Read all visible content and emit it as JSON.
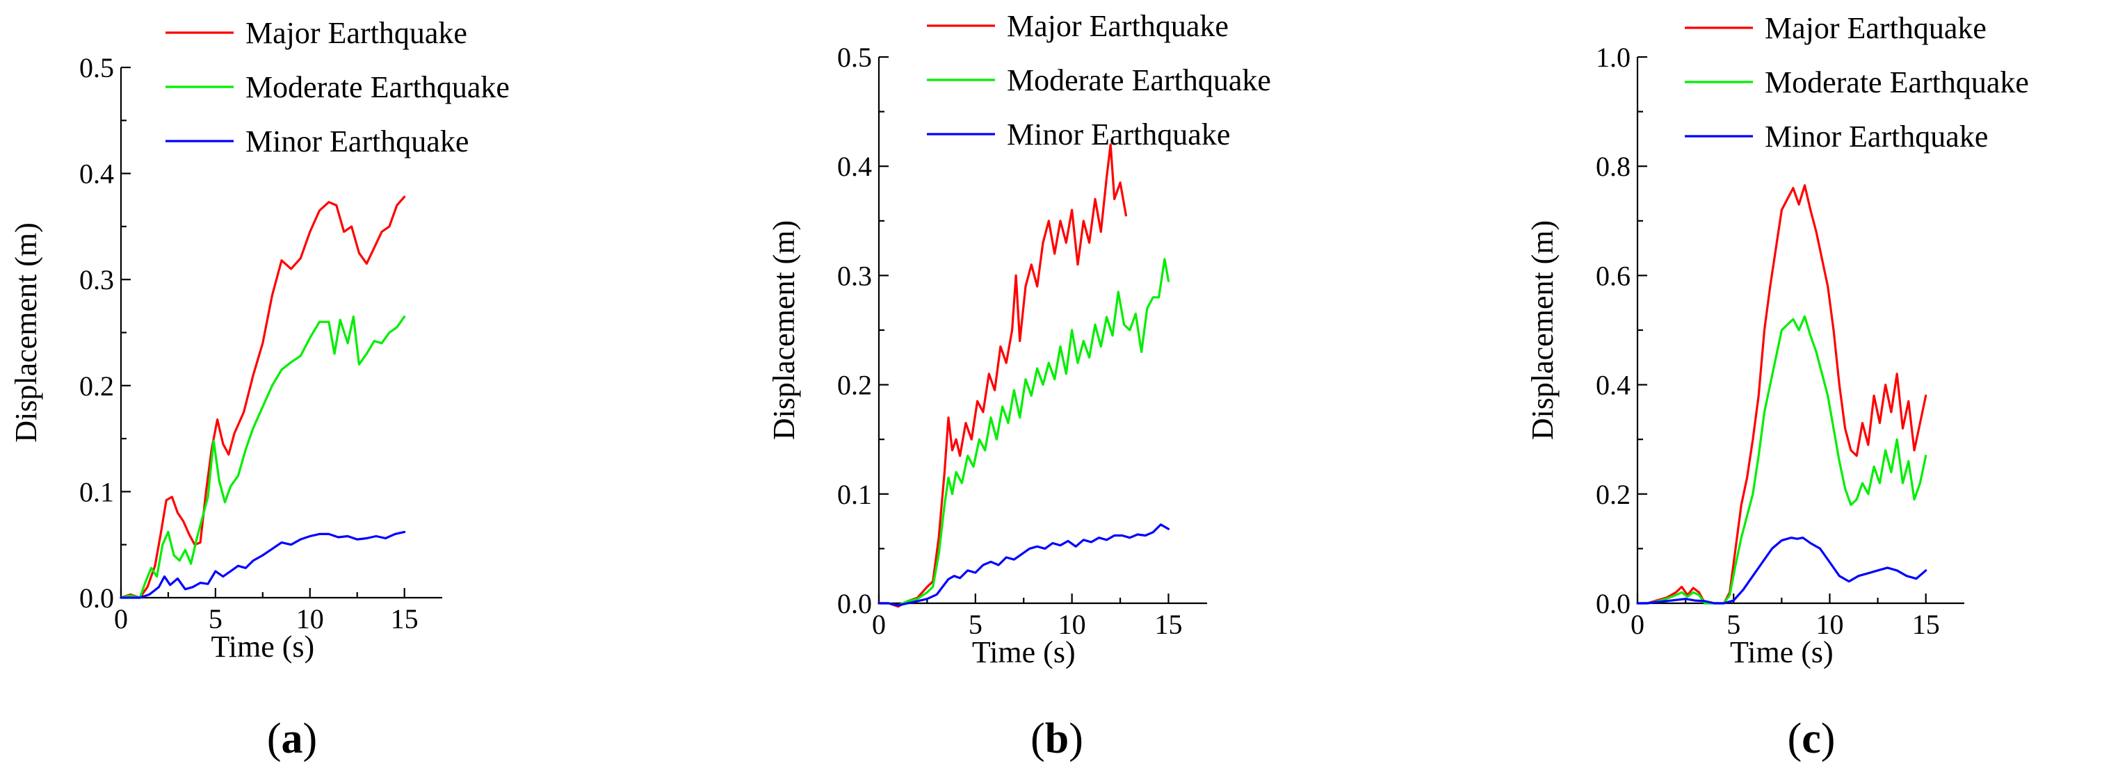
{
  "chart_data": [
    {
      "type": "line",
      "panel": "a",
      "xlabel": "Time (s)",
      "ylabel": "Displacement (m)",
      "xlim": [
        0,
        17
      ],
      "ylim": [
        0,
        0.5
      ],
      "xticks": [
        0,
        5,
        10,
        15
      ],
      "yticks": [
        0.0,
        0.1,
        0.2,
        0.3,
        0.4,
        0.5
      ],
      "ytick_labels": [
        "0.0",
        "0.1",
        "0.2",
        "0.3",
        "0.4",
        "0.5"
      ],
      "legend": "top-right",
      "series": [
        {
          "name": "Major Earthquake",
          "color": "#ff0000",
          "x": [
            0,
            0.5,
            1,
            1.4,
            1.8,
            2.1,
            2.4,
            2.7,
            3.0,
            3.3,
            3.6,
            3.9,
            4.2,
            4.5,
            4.8,
            5.1,
            5.4,
            5.7,
            6.0,
            6.5,
            7.0,
            7.5,
            8.0,
            8.5,
            9.0,
            9.5,
            10.0,
            10.5,
            11.0,
            11.4,
            11.8,
            12.2,
            12.6,
            13.0,
            13.4,
            13.8,
            14.2,
            14.6,
            15.0
          ],
          "y": [
            0,
            0.003,
            0.0,
            0.01,
            0.03,
            0.06,
            0.092,
            0.095,
            0.08,
            0.072,
            0.06,
            0.05,
            0.052,
            0.1,
            0.14,
            0.168,
            0.145,
            0.135,
            0.155,
            0.175,
            0.21,
            0.24,
            0.285,
            0.318,
            0.31,
            0.32,
            0.345,
            0.365,
            0.373,
            0.37,
            0.345,
            0.35,
            0.325,
            0.315,
            0.33,
            0.345,
            0.35,
            0.37,
            0.378
          ]
        },
        {
          "name": "Moderate Earthquake",
          "color": "#00ee00",
          "x": [
            0,
            0.5,
            1,
            1.3,
            1.6,
            1.9,
            2.2,
            2.5,
            2.8,
            3.1,
            3.4,
            3.7,
            4.0,
            4.3,
            4.6,
            4.9,
            5.2,
            5.5,
            5.8,
            6.2,
            6.6,
            7.0,
            7.5,
            8.0,
            8.5,
            9.0,
            9.5,
            10.0,
            10.5,
            11.0,
            11.3,
            11.6,
            12.0,
            12.3,
            12.6,
            13.0,
            13.4,
            13.8,
            14.2,
            14.6,
            15.0
          ],
          "y": [
            0,
            0.002,
            0.0,
            0.015,
            0.028,
            0.02,
            0.05,
            0.062,
            0.04,
            0.035,
            0.045,
            0.032,
            0.055,
            0.075,
            0.095,
            0.148,
            0.11,
            0.09,
            0.105,
            0.115,
            0.14,
            0.16,
            0.18,
            0.2,
            0.215,
            0.222,
            0.228,
            0.245,
            0.26,
            0.26,
            0.23,
            0.262,
            0.24,
            0.265,
            0.22,
            0.23,
            0.242,
            0.24,
            0.25,
            0.255,
            0.265
          ]
        },
        {
          "name": "Minor Earthquake",
          "color": "#0000ff",
          "x": [
            0,
            0.5,
            1,
            1.5,
            2.0,
            2.3,
            2.6,
            3.0,
            3.4,
            3.8,
            4.2,
            4.6,
            5.0,
            5.4,
            5.8,
            6.2,
            6.6,
            7.0,
            7.5,
            8.0,
            8.5,
            9.0,
            9.5,
            10.0,
            10.5,
            11.0,
            11.5,
            12.0,
            12.5,
            13.0,
            13.5,
            14.0,
            14.5,
            15.0
          ],
          "y": [
            0,
            0.0,
            0.0,
            0.003,
            0.01,
            0.02,
            0.012,
            0.018,
            0.008,
            0.01,
            0.014,
            0.013,
            0.025,
            0.02,
            0.025,
            0.03,
            0.028,
            0.035,
            0.04,
            0.046,
            0.052,
            0.05,
            0.055,
            0.058,
            0.06,
            0.06,
            0.057,
            0.058,
            0.055,
            0.056,
            0.058,
            0.056,
            0.06,
            0.062
          ]
        }
      ]
    },
    {
      "type": "line",
      "panel": "b",
      "xlabel": "Time (s)",
      "ylabel": "Displacement (m)",
      "xlim": [
        0,
        17
      ],
      "ylim": [
        0,
        0.5
      ],
      "xticks": [
        0,
        5,
        10,
        15
      ],
      "yticks": [
        0.0,
        0.1,
        0.2,
        0.3,
        0.4,
        0.5
      ],
      "ytick_labels": [
        "0.0",
        "0.1",
        "0.2",
        "0.3",
        "0.4",
        "0.5"
      ],
      "legend": "top-right",
      "series": [
        {
          "name": "Major Earthquake",
          "color": "#ff0000",
          "x": [
            0,
            0.5,
            1,
            1.5,
            2.0,
            2.5,
            2.8,
            3.1,
            3.4,
            3.6,
            3.8,
            4.0,
            4.2,
            4.5,
            4.8,
            5.1,
            5.4,
            5.7,
            6.0,
            6.3,
            6.6,
            6.9,
            7.1,
            7.3,
            7.6,
            7.9,
            8.2,
            8.5,
            8.8,
            9.1,
            9.4,
            9.7,
            10.0,
            10.3,
            10.6,
            10.9,
            11.2,
            11.5,
            11.8,
            12.0,
            12.2,
            12.5,
            12.8
          ],
          "y": [
            0,
            0.0,
            -0.003,
            0.002,
            0.005,
            0.015,
            0.02,
            0.06,
            0.12,
            0.17,
            0.14,
            0.15,
            0.135,
            0.165,
            0.15,
            0.185,
            0.175,
            0.21,
            0.195,
            0.235,
            0.22,
            0.25,
            0.3,
            0.24,
            0.29,
            0.31,
            0.29,
            0.33,
            0.35,
            0.32,
            0.35,
            0.33,
            0.36,
            0.31,
            0.35,
            0.33,
            0.37,
            0.34,
            0.39,
            0.42,
            0.37,
            0.385,
            0.355
          ]
        },
        {
          "name": "Moderate Earthquake",
          "color": "#00ee00",
          "x": [
            0,
            0.5,
            1,
            1.5,
            2.0,
            2.5,
            2.8,
            3.1,
            3.4,
            3.6,
            3.8,
            4.0,
            4.3,
            4.6,
            4.9,
            5.2,
            5.5,
            5.8,
            6.1,
            6.4,
            6.7,
            7.0,
            7.3,
            7.6,
            7.9,
            8.2,
            8.5,
            8.8,
            9.1,
            9.4,
            9.7,
            10.0,
            10.3,
            10.6,
            10.9,
            11.2,
            11.5,
            11.8,
            12.1,
            12.4,
            12.7,
            13.0,
            13.3,
            13.6,
            13.9,
            14.2,
            14.5,
            14.8,
            15.0
          ],
          "y": [
            0,
            0.0,
            -0.002,
            0.002,
            0.004,
            0.01,
            0.015,
            0.045,
            0.09,
            0.115,
            0.1,
            0.12,
            0.11,
            0.135,
            0.125,
            0.15,
            0.14,
            0.17,
            0.15,
            0.18,
            0.165,
            0.195,
            0.17,
            0.205,
            0.19,
            0.215,
            0.2,
            0.22,
            0.205,
            0.235,
            0.21,
            0.25,
            0.22,
            0.24,
            0.225,
            0.255,
            0.235,
            0.262,
            0.245,
            0.285,
            0.255,
            0.25,
            0.265,
            0.23,
            0.27,
            0.28,
            0.28,
            0.315,
            0.295
          ]
        },
        {
          "name": "Minor Earthquake",
          "color": "#0000ff",
          "x": [
            0,
            0.5,
            1,
            1.5,
            2.0,
            2.5,
            3.0,
            3.3,
            3.6,
            3.9,
            4.2,
            4.6,
            5.0,
            5.4,
            5.8,
            6.2,
            6.6,
            7.0,
            7.4,
            7.8,
            8.2,
            8.6,
            9.0,
            9.4,
            9.8,
            10.2,
            10.6,
            11.0,
            11.4,
            11.8,
            12.2,
            12.6,
            13.0,
            13.4,
            13.8,
            14.2,
            14.6,
            15.0
          ],
          "y": [
            0,
            0.0,
            -0.002,
            0.0,
            0.002,
            0.004,
            0.008,
            0.015,
            0.022,
            0.025,
            0.023,
            0.03,
            0.028,
            0.035,
            0.038,
            0.035,
            0.042,
            0.04,
            0.045,
            0.05,
            0.052,
            0.05,
            0.055,
            0.053,
            0.057,
            0.052,
            0.058,
            0.056,
            0.06,
            0.058,
            0.062,
            0.062,
            0.06,
            0.063,
            0.062,
            0.065,
            0.072,
            0.068
          ]
        }
      ]
    },
    {
      "type": "line",
      "panel": "c",
      "xlabel": "Time (s)",
      "ylabel": "Displacement (m)",
      "xlim": [
        0,
        17
      ],
      "ylim": [
        0,
        1.0
      ],
      "xticks": [
        0,
        5,
        10,
        15
      ],
      "yticks": [
        0.0,
        0.2,
        0.4,
        0.6,
        0.8,
        1.0
      ],
      "ytick_labels": [
        "0.0",
        "0.2",
        "0.4",
        "0.6",
        "0.8",
        "1.0"
      ],
      "legend": "top-right",
      "series": [
        {
          "name": "Major Earthquake",
          "color": "#ff0000",
          "x": [
            0,
            0.5,
            1.0,
            1.5,
            2.0,
            2.3,
            2.6,
            2.9,
            3.2,
            3.5,
            4.0,
            4.5,
            4.8,
            5.1,
            5.4,
            5.7,
            6.0,
            6.3,
            6.6,
            6.9,
            7.2,
            7.5,
            7.8,
            8.1,
            8.4,
            8.7,
            9.0,
            9.3,
            9.6,
            9.9,
            10.2,
            10.5,
            10.8,
            11.1,
            11.4,
            11.7,
            12.0,
            12.3,
            12.6,
            12.9,
            13.2,
            13.5,
            13.8,
            14.1,
            14.4,
            14.7,
            15.0
          ],
          "y": [
            0,
            0.0,
            0.005,
            0.01,
            0.02,
            0.03,
            0.015,
            0.028,
            0.02,
            0.0,
            0.0,
            0.0,
            0.02,
            0.1,
            0.18,
            0.23,
            0.3,
            0.38,
            0.5,
            0.58,
            0.65,
            0.72,
            0.74,
            0.76,
            0.73,
            0.765,
            0.72,
            0.68,
            0.63,
            0.58,
            0.5,
            0.4,
            0.32,
            0.28,
            0.27,
            0.33,
            0.29,
            0.38,
            0.33,
            0.4,
            0.35,
            0.42,
            0.32,
            0.37,
            0.28,
            0.33,
            0.38
          ]
        },
        {
          "name": "Moderate Earthquake",
          "color": "#00ee00",
          "x": [
            0,
            0.5,
            1.0,
            1.5,
            2.0,
            2.3,
            2.6,
            2.9,
            3.2,
            3.5,
            4.0,
            4.5,
            4.8,
            5.1,
            5.4,
            5.7,
            6.0,
            6.3,
            6.6,
            6.9,
            7.2,
            7.5,
            7.8,
            8.1,
            8.4,
            8.7,
            9.0,
            9.3,
            9.6,
            9.9,
            10.2,
            10.5,
            10.8,
            11.1,
            11.4,
            11.7,
            12.0,
            12.3,
            12.6,
            12.9,
            13.2,
            13.5,
            13.8,
            14.1,
            14.4,
            14.7,
            15.0
          ],
          "y": [
            0,
            0.0,
            0.003,
            0.008,
            0.015,
            0.02,
            0.012,
            0.02,
            0.015,
            0.0,
            0.0,
            0.0,
            0.015,
            0.07,
            0.12,
            0.16,
            0.2,
            0.27,
            0.35,
            0.4,
            0.45,
            0.5,
            0.51,
            0.52,
            0.5,
            0.525,
            0.49,
            0.46,
            0.42,
            0.38,
            0.32,
            0.26,
            0.21,
            0.18,
            0.19,
            0.22,
            0.2,
            0.25,
            0.22,
            0.28,
            0.24,
            0.3,
            0.22,
            0.26,
            0.19,
            0.22,
            0.27
          ]
        },
        {
          "name": "Minor Earthquake",
          "color": "#0000ff",
          "x": [
            0,
            0.5,
            1.0,
            1.5,
            2.0,
            2.5,
            3.0,
            3.5,
            4.0,
            4.5,
            5.0,
            5.5,
            6.0,
            6.5,
            7.0,
            7.5,
            8.0,
            8.3,
            8.6,
            9.0,
            9.5,
            10.0,
            10.5,
            11.0,
            11.5,
            12.0,
            12.5,
            13.0,
            13.5,
            14.0,
            14.5,
            15.0
          ],
          "y": [
            0,
            0.0,
            0.002,
            0.004,
            0.006,
            0.008,
            0.005,
            0.004,
            0.0,
            0.0,
            0.005,
            0.025,
            0.05,
            0.075,
            0.1,
            0.115,
            0.12,
            0.118,
            0.12,
            0.11,
            0.1,
            0.075,
            0.05,
            0.04,
            0.05,
            0.055,
            0.06,
            0.065,
            0.06,
            0.05,
            0.045,
            0.06
          ]
        }
      ]
    }
  ],
  "panel_labels": [
    "(a)",
    "(b)",
    "(c)"
  ]
}
